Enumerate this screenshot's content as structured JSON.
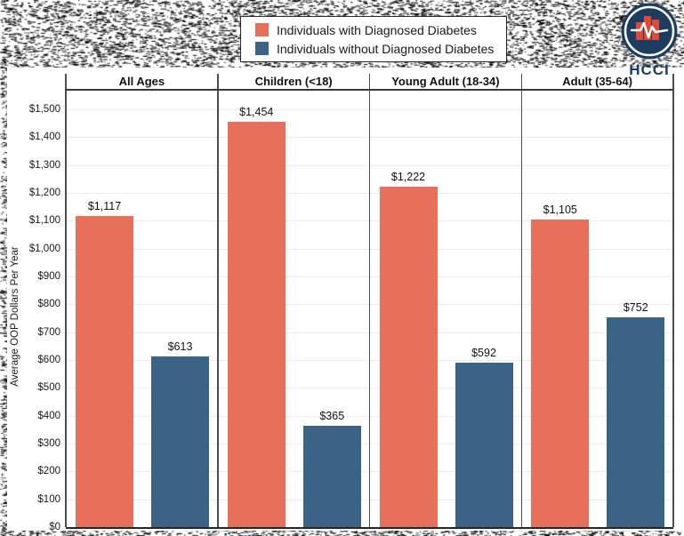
{
  "legend": {
    "items": [
      {
        "label": "Individuals with Diagnosed Diabetes",
        "color": "#E7705A"
      },
      {
        "label": "Individuals without Diagnosed Diabetes",
        "color": "#3A6386"
      }
    ]
  },
  "logo": {
    "text": "HCCI",
    "navy": "#1C3D61",
    "red": "#E04A33"
  },
  "chart_data": {
    "type": "bar",
    "title": "",
    "categories": [
      "All Ages",
      "Children (<18)",
      "Young Adult (18-34)",
      "Adult (35-64)"
    ],
    "series": [
      {
        "name": "Individuals with Diagnosed Diabetes",
        "color": "#E7705A",
        "values": [
          1117,
          1454,
          1222,
          1105
        ]
      },
      {
        "name": "Individuals without Diagnosed Diabetes",
        "color": "#3A6386",
        "values": [
          613,
          365,
          592,
          752
        ]
      }
    ],
    "value_labels": [
      [
        "$1,117",
        "$1,454",
        "$1,222",
        "$1,105"
      ],
      [
        "$613",
        "$365",
        "$592",
        "$752"
      ]
    ],
    "ylabel": "Average OOP Dollars Per Year",
    "ylim": [
      0,
      1500
    ],
    "ytick_step": 100,
    "ytick_prefix": "$",
    "grid": true,
    "legend_position": "top-center"
  }
}
